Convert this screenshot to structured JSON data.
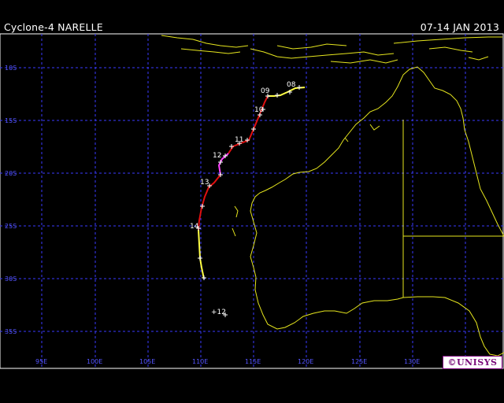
{
  "header": {
    "title": "Cyclone-4 NARELLE",
    "dates": "07-14 JAN 2013"
  },
  "map": {
    "lat_labels": [
      "10S",
      "15S",
      "20S",
      "25S",
      "30S",
      "35S"
    ],
    "lon_labels": [
      "95E",
      "100E",
      "105E",
      "110E",
      "115E",
      "120E",
      "125E",
      "130E"
    ],
    "day_labels": [
      "09",
      "08",
      "10",
      "11",
      "12",
      "13",
      "14",
      "+12"
    ],
    "colors": {
      "grid": "#3a3aff",
      "coast": "#e6e61e",
      "track_depression": "#ffff44",
      "track_storm": "#e01010",
      "track_cyclone": "#ff44ff",
      "marker": "#ffffff"
    }
  },
  "logo": {
    "text": "©UNISYS"
  }
}
